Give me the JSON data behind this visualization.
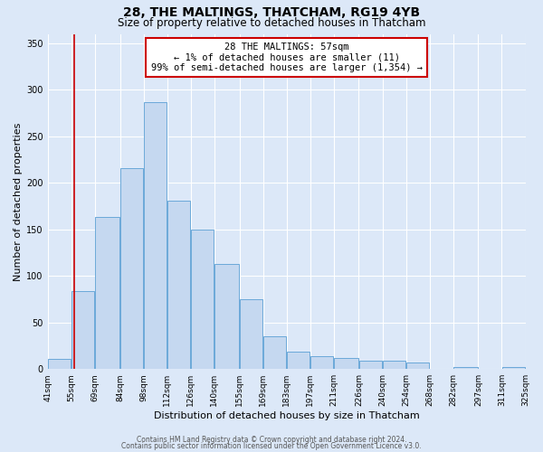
{
  "title": "28, THE MALTINGS, THATCHAM, RG19 4YB",
  "subtitle": "Size of property relative to detached houses in Thatcham",
  "xlabel": "Distribution of detached houses by size in Thatcham",
  "ylabel": "Number of detached properties",
  "bar_left_edges": [
    41,
    55,
    69,
    84,
    98,
    112,
    126,
    140,
    155,
    169,
    183,
    197,
    211,
    226,
    240,
    254,
    268,
    282,
    297,
    311
  ],
  "bar_widths": [
    14,
    14,
    15,
    14,
    14,
    14,
    14,
    15,
    14,
    14,
    14,
    14,
    15,
    14,
    14,
    14,
    14,
    15,
    14,
    14
  ],
  "bar_heights": [
    11,
    84,
    163,
    216,
    287,
    181,
    150,
    113,
    75,
    35,
    19,
    14,
    12,
    9,
    9,
    7,
    0,
    2,
    0,
    2
  ],
  "bar_color": "#c5d8f0",
  "bar_edge_color": "#5a9fd4",
  "tick_labels": [
    "41sqm",
    "55sqm",
    "69sqm",
    "84sqm",
    "98sqm",
    "112sqm",
    "126sqm",
    "140sqm",
    "155sqm",
    "169sqm",
    "183sqm",
    "197sqm",
    "211sqm",
    "226sqm",
    "240sqm",
    "254sqm",
    "268sqm",
    "282sqm",
    "297sqm",
    "311sqm",
    "325sqm"
  ],
  "ylim": [
    0,
    360
  ],
  "yticks": [
    0,
    50,
    100,
    150,
    200,
    250,
    300,
    350
  ],
  "property_size": 57,
  "red_line_color": "#cc0000",
  "annotation_text": "28 THE MALTINGS: 57sqm\n← 1% of detached houses are smaller (11)\n99% of semi-detached houses are larger (1,354) →",
  "annotation_box_color": "#ffffff",
  "annotation_box_edge": "#cc0000",
  "footer_line1": "Contains HM Land Registry data © Crown copyright and database right 2024.",
  "footer_line2": "Contains public sector information licensed under the Open Government Licence v3.0.",
  "bg_color": "#dce8f8",
  "plot_bg_color": "#dce8f8",
  "grid_color": "#ffffff",
  "title_fontsize": 10,
  "subtitle_fontsize": 8.5,
  "axis_label_fontsize": 8,
  "tick_fontsize": 6.5,
  "annotation_fontsize": 7.5,
  "footer_fontsize": 5.5
}
